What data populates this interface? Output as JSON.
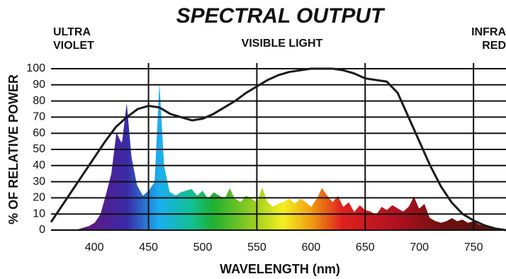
{
  "chart_data": {
    "type": "area-line",
    "title": "SPECTRAL OUTPUT",
    "annotations": [
      [
        "ULTRA",
        "VIOLET"
      ],
      [
        "VISIBLE LIGHT"
      ],
      [
        "INFRA",
        "RED"
      ]
    ],
    "x_label": "WAVELENGTH (nm)",
    "y_label": "% OF RELATIVE POWER",
    "xlim": [
      360,
      780
    ],
    "ylim": [
      0,
      100
    ],
    "xticks": [
      400,
      450,
      500,
      550,
      600,
      650,
      700,
      750
    ],
    "yticks": [
      0,
      10,
      20,
      30,
      40,
      50,
      60,
      70,
      80,
      90,
      100
    ],
    "xgrid": [
      450,
      550,
      650,
      750
    ],
    "grid": true,
    "series": [
      {
        "kind": "area",
        "x": [
          360,
          365,
          370,
          375,
          380,
          385,
          390,
          395,
          400,
          405,
          410,
          415,
          420,
          425,
          430,
          435,
          440,
          445,
          450,
          455,
          460,
          465,
          470,
          475,
          480,
          485,
          490,
          495,
          500,
          505,
          510,
          515,
          520,
          525,
          530,
          535,
          540,
          545,
          550,
          555,
          560,
          565,
          570,
          575,
          580,
          585,
          590,
          595,
          600,
          605,
          610,
          615,
          620,
          625,
          630,
          635,
          640,
          645,
          650,
          655,
          660,
          665,
          670,
          675,
          680,
          685,
          690,
          695,
          700,
          705,
          710,
          715,
          720,
          725,
          730,
          735,
          740,
          745,
          750,
          755,
          760,
          765,
          770,
          775,
          780
        ],
        "values": [
          1,
          1,
          1,
          1,
          1,
          1,
          2,
          3,
          5,
          10,
          22,
          35,
          62,
          55,
          83,
          45,
          28,
          22,
          25,
          30,
          100,
          40,
          24,
          22,
          24,
          25,
          26,
          22,
          25,
          20,
          24,
          22,
          20,
          27,
          20,
          18,
          22,
          20,
          18,
          28,
          18,
          15,
          17,
          18,
          20,
          17,
          20,
          18,
          15,
          20,
          27,
          22,
          18,
          22,
          15,
          18,
          12,
          16,
          13,
          12,
          10,
          15,
          13,
          16,
          14,
          12,
          15,
          22,
          14,
          17,
          8,
          6,
          5,
          6,
          8,
          6,
          7,
          5,
          6,
          4,
          3,
          2,
          1,
          1,
          1
        ]
      },
      {
        "kind": "line",
        "color": "#1a1a1a",
        "x": [
          360,
          370,
          380,
          390,
          400,
          410,
          420,
          430,
          440,
          450,
          460,
          470,
          480,
          490,
          500,
          510,
          520,
          530,
          540,
          550,
          560,
          570,
          580,
          590,
          600,
          610,
          620,
          630,
          640,
          650,
          660,
          670,
          680,
          690,
          700,
          710,
          720,
          730,
          740,
          750,
          760,
          770,
          780
        ],
        "values": [
          5,
          15,
          25,
          35,
          45,
          55,
          64,
          70,
          75,
          77,
          76,
          72,
          70,
          68,
          69,
          72,
          76,
          80,
          85,
          89,
          93,
          96,
          98,
          99,
          100,
          100,
          100,
          99,
          97,
          94,
          93,
          92,
          85,
          70,
          55,
          40,
          27,
          17,
          10,
          6,
          3,
          1,
          0
        ]
      }
    ]
  }
}
